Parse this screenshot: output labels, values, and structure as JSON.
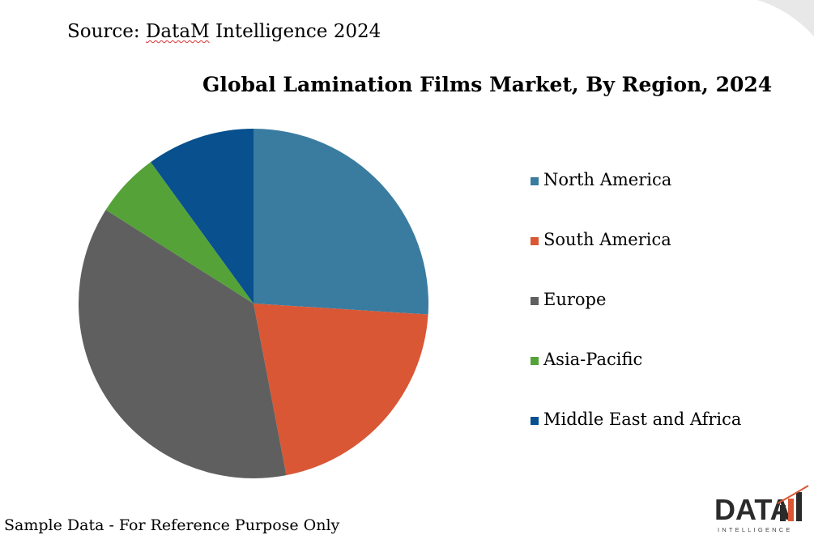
{
  "source": {
    "prefix": "Source: ",
    "name": "DataM",
    "suffix": " Intelligence 2024"
  },
  "footer": "Sample Data - For Reference Purpose Only",
  "logo": {
    "word": "DATA",
    "sub": "INTELLIGENCE"
  },
  "chart_data": {
    "type": "pie",
    "title": "Global Lamination Films Market, By Region, 2024",
    "categories": [
      "North America",
      "South America",
      "Europe",
      "Asia-Pacific",
      "Middle East and Africa"
    ],
    "values": [
      26,
      21,
      37,
      6,
      10
    ],
    "colors": [
      "#3a7ca0",
      "#d95735",
      "#5f5f5f",
      "#55a239",
      "#08508e"
    ],
    "legend_position": "right",
    "start_angle": "12 o'clock",
    "direction": "clockwise"
  }
}
